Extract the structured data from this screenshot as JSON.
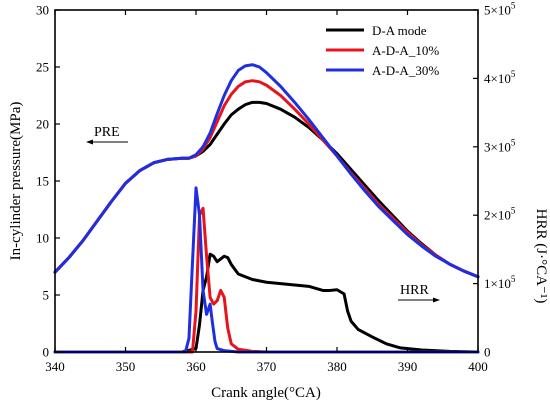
{
  "chart_data": {
    "type": "line",
    "xlabel": "Crank angle(°CA)",
    "ylabel_left": "In-cylinder pressure(MPa)",
    "ylabel_right": "HRR (J·°CA⁻¹)",
    "xlim": [
      340,
      400
    ],
    "ylim_left": [
      0,
      30
    ],
    "ylim_right": [
      0,
      500000
    ],
    "x_ticks": [
      "340",
      "350",
      "360",
      "370",
      "380",
      "390",
      "400"
    ],
    "y_left_ticks": [
      "0",
      "5",
      "10",
      "15",
      "20",
      "25",
      "30"
    ],
    "y_right_ticks": [
      {
        "base": "0",
        "exp": ""
      },
      {
        "base": "1×10",
        "exp": "5"
      },
      {
        "base": "2×10",
        "exp": "5"
      },
      {
        "base": "3×10",
        "exp": "5"
      },
      {
        "base": "4×10",
        "exp": "5"
      },
      {
        "base": "5×10",
        "exp": "5"
      }
    ],
    "legend": {
      "placement": "top-right"
    },
    "annotations": [
      {
        "text": "PRE",
        "arrow": "left"
      },
      {
        "text": "HRR",
        "arrow": "right"
      }
    ],
    "series": [
      {
        "name": "D-A mode",
        "color": "#000000",
        "axis": "left",
        "kind": "pressure",
        "x": [
          340,
          342,
          344,
          346,
          348,
          350,
          352,
          354,
          356,
          358,
          359,
          360,
          361,
          362,
          363,
          364,
          365,
          366,
          367,
          368,
          369,
          370,
          372,
          374,
          376,
          378,
          380,
          382,
          384,
          386,
          388,
          390,
          392,
          394,
          396,
          398,
          400
        ],
        "y": [
          7.0,
          8.3,
          9.8,
          11.5,
          13.2,
          14.8,
          15.9,
          16.6,
          16.9,
          17.0,
          17.0,
          17.2,
          17.6,
          18.2,
          19.1,
          20.0,
          20.8,
          21.3,
          21.7,
          21.9,
          21.9,
          21.8,
          21.3,
          20.6,
          19.7,
          18.6,
          17.4,
          16.0,
          14.6,
          13.2,
          11.9,
          10.6,
          9.5,
          8.5,
          7.7,
          7.1,
          6.6
        ]
      },
      {
        "name": "A-D-A_10%",
        "color": "#e8141c",
        "axis": "left",
        "kind": "pressure",
        "x": [
          340,
          342,
          344,
          346,
          348,
          350,
          352,
          354,
          356,
          358,
          359,
          360,
          361,
          362,
          363,
          364,
          365,
          366,
          367,
          368,
          369,
          370,
          372,
          374,
          376,
          378,
          380,
          382,
          384,
          386,
          388,
          390,
          392,
          394,
          396,
          398,
          400
        ],
        "y": [
          7.0,
          8.3,
          9.8,
          11.5,
          13.2,
          14.8,
          15.9,
          16.6,
          16.9,
          17.0,
          17.0,
          17.2,
          17.8,
          18.8,
          20.2,
          21.6,
          22.6,
          23.3,
          23.7,
          23.8,
          23.7,
          23.4,
          22.5,
          21.3,
          20.0,
          18.6,
          17.2,
          15.7,
          14.3,
          12.9,
          11.7,
          10.5,
          9.4,
          8.5,
          7.7,
          7.1,
          6.6
        ]
      },
      {
        "name": "A-D-A_30%",
        "color": "#1f2fe0",
        "axis": "left",
        "kind": "pressure",
        "x": [
          340,
          342,
          344,
          346,
          348,
          350,
          352,
          354,
          356,
          358,
          359,
          360,
          361,
          362,
          363,
          364,
          365,
          366,
          367,
          368,
          369,
          370,
          372,
          374,
          376,
          378,
          380,
          382,
          384,
          386,
          388,
          390,
          392,
          394,
          396,
          398,
          400
        ],
        "y": [
          7.0,
          8.3,
          9.8,
          11.5,
          13.2,
          14.8,
          15.9,
          16.6,
          16.9,
          17.0,
          17.0,
          17.3,
          18.0,
          19.2,
          20.9,
          22.5,
          23.8,
          24.7,
          25.1,
          25.2,
          25.0,
          24.5,
          23.3,
          21.9,
          20.4,
          18.8,
          17.2,
          15.6,
          14.1,
          12.7,
          11.5,
          10.3,
          9.3,
          8.4,
          7.7,
          7.1,
          6.6
        ]
      },
      {
        "name": "D-A mode",
        "color": "#000000",
        "axis": "right",
        "kind": "hrr",
        "x": [
          340,
          358,
          360,
          360.5,
          361,
          361.5,
          362,
          362.5,
          363,
          363.5,
          364,
          364.5,
          365,
          366,
          367,
          368,
          369,
          370,
          372,
          374,
          376,
          378,
          379,
          380,
          381,
          381.5,
          382,
          383,
          385,
          387,
          389,
          392,
          396,
          400
        ],
        "y": [
          0,
          0,
          5000,
          40000,
          90000,
          110000,
          143000,
          140000,
          132000,
          136000,
          140000,
          138000,
          128000,
          114000,
          110000,
          106000,
          104000,
          102000,
          100000,
          98000,
          96000,
          90000,
          90000,
          91000,
          85000,
          60000,
          45000,
          33000,
          22000,
          12000,
          6000,
          3000,
          1000,
          0
        ]
      },
      {
        "name": "A-D-A_10%",
        "color": "#e8141c",
        "axis": "right",
        "kind": "hrr",
        "x": [
          340,
          359.5,
          360,
          360.5,
          361,
          361.5,
          362,
          362.5,
          363,
          363.5,
          364,
          364.5,
          365,
          366,
          368,
          370,
          372,
          400
        ],
        "y": [
          0,
          0,
          60000,
          200000,
          210000,
          140000,
          80000,
          70000,
          75000,
          90000,
          80000,
          35000,
          12000,
          4000,
          1000,
          0,
          0,
          0
        ]
      },
      {
        "name": "A-D-A_30%",
        "color": "#1f2fe0",
        "axis": "right",
        "kind": "hrr",
        "x": [
          340,
          358.5,
          359,
          359.5,
          360,
          360.5,
          361,
          361.5,
          362,
          362.3,
          362.7,
          363,
          364,
          366,
          370,
          400
        ],
        "y": [
          0,
          0,
          20000,
          130000,
          240000,
          200000,
          90000,
          55000,
          70000,
          45000,
          15000,
          5000,
          2000,
          0,
          0,
          0
        ]
      }
    ]
  }
}
